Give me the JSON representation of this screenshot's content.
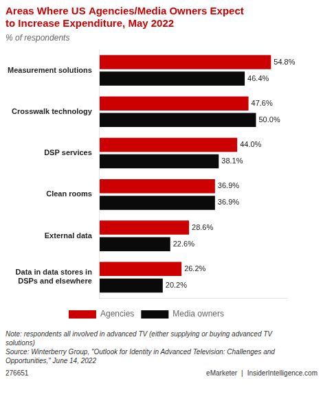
{
  "chart_data": {
    "type": "bar",
    "orientation": "horizontal",
    "title": "Areas Where US Agencies/Media Owners Expect\nto Increase Expenditure, May 2022",
    "subtitle": "% of respondents",
    "categories": [
      "Measurement solutions",
      "Crosswalk technology",
      "DSP services",
      "Clean rooms",
      "External data",
      "Data in data stores in DSPs and elsewhere"
    ],
    "series": [
      {
        "name": "Agencies",
        "color": "#cc0000",
        "values": [
          54.8,
          47.6,
          44.0,
          36.9,
          28.6,
          26.2
        ],
        "value_labels": [
          "54.8%",
          "47.6%",
          "44.0%",
          "36.9%",
          "28.6%",
          "26.2%"
        ]
      },
      {
        "name": "Media owners",
        "color": "#0a0a0a",
        "values": [
          46.4,
          50.0,
          38.1,
          36.9,
          22.6,
          20.2
        ],
        "value_labels": [
          "46.4%",
          "50.0%",
          "38.1%",
          "36.9%",
          "22.6%",
          "20.2%"
        ]
      }
    ],
    "xlim": [
      0,
      60
    ],
    "grid": false,
    "legend": "bottom",
    "data_labels": true,
    "tick_labels": "y",
    "annotations": [
      "Note: respondents all involved in advanced TV (either supplying or buying advanced TV\nsolutions)\nSource: Winterberry Group, \"Outlook for Identity in Advanced Television: Challenges and\nOpportunities,\" June 14, 2022",
      "276651",
      "eMarketer",
      "|",
      "InsiderIntelligence.com"
    ]
  }
}
